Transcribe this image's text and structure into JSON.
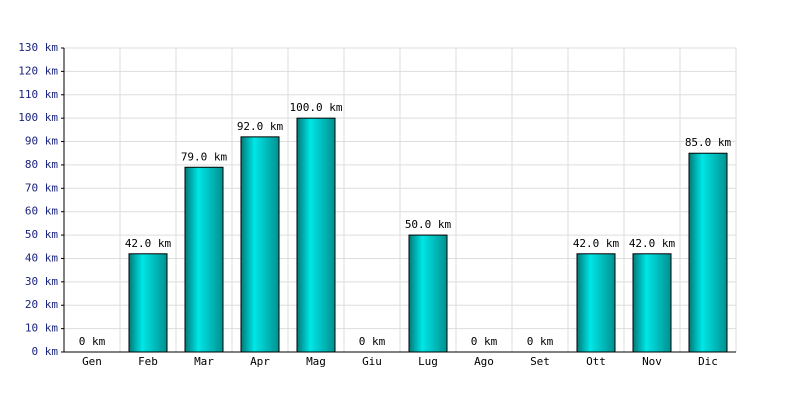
{
  "chart_data": {
    "type": "bar",
    "categories": [
      "Gen",
      "Feb",
      "Mar",
      "Apr",
      "Mag",
      "Giu",
      "Lug",
      "Ago",
      "Set",
      "Ott",
      "Nov",
      "Dic"
    ],
    "values": [
      0,
      42,
      79,
      92,
      100,
      0,
      50,
      0,
      0,
      42,
      42,
      85
    ],
    "value_labels": [
      "0 km",
      "42.0 km",
      "79.0 km",
      "92.0 km",
      "100.0 km",
      "0 km",
      "50.0 km",
      "0 km",
      "0 km",
      "42.0 km",
      "42.0 km",
      "85.0 km"
    ],
    "color": "#00e6e6",
    "ylim": [
      0,
      130
    ],
    "yticks": [
      {
        "value": 0,
        "label": "0 km"
      },
      {
        "value": 10,
        "label": "10 km"
      },
      {
        "value": 20,
        "label": "20 km"
      },
      {
        "value": 30,
        "label": "30 km"
      },
      {
        "value": 40,
        "label": "40 km"
      },
      {
        "value": 50,
        "label": "50 km"
      },
      {
        "value": 60,
        "label": "60 km"
      },
      {
        "value": 70,
        "label": "70 km"
      },
      {
        "value": 80,
        "label": "80 km"
      },
      {
        "value": 90,
        "label": "90 km"
      },
      {
        "value": 100,
        "label": "100 km"
      },
      {
        "value": 110,
        "label": "110 km"
      },
      {
        "value": 120,
        "label": "120 km"
      },
      {
        "value": 130,
        "label": "130 km"
      }
    ],
    "grid": true
  }
}
